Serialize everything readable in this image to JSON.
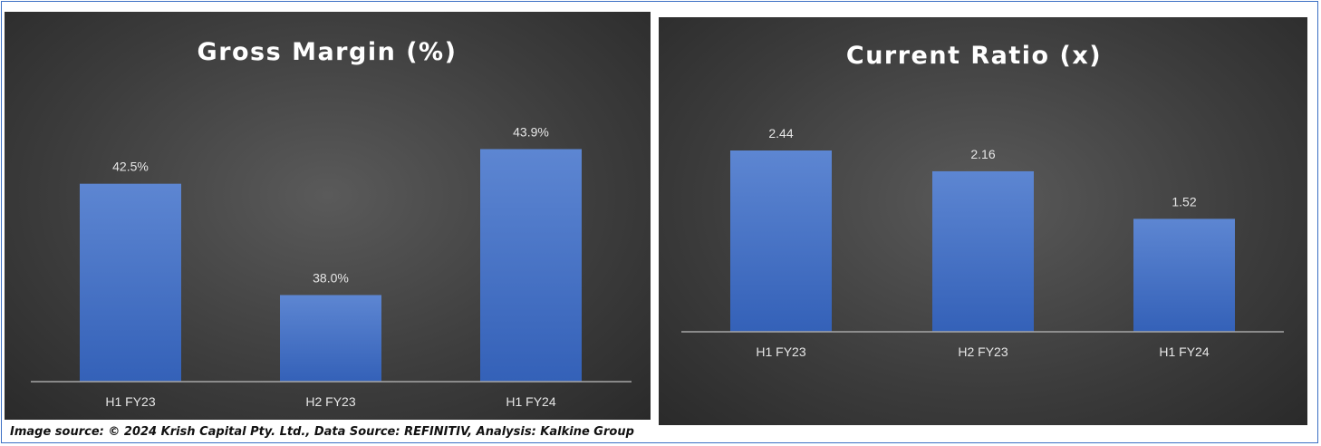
{
  "chart_data": [
    {
      "type": "bar",
      "title": "Gross Margin (%)",
      "categories": [
        "H1 FY23",
        "H2 FY23",
        "H1 FY24"
      ],
      "values": [
        42.5,
        38.0,
        43.9
      ],
      "data_labels": [
        "42.5%",
        "38.0%",
        "43.9%"
      ],
      "ylim": [
        34.5,
        45.2
      ],
      "grid": false,
      "bar_color": "#4472c4"
    },
    {
      "type": "bar",
      "title": "Current Ratio (x)",
      "categories": [
        "H1 FY23",
        "H2 FY23",
        "H1 FY24"
      ],
      "values": [
        2.44,
        2.16,
        1.52
      ],
      "data_labels": [
        "2.44",
        "2.16",
        "1.52"
      ],
      "ylim": [
        0,
        2.44
      ],
      "grid": false,
      "bar_color": "#4472c4"
    }
  ],
  "source_text": "Image source: © 2024 Krish Capital Pty. Ltd., Data Source: REFINITIV, Analysis: Kalkine Group"
}
